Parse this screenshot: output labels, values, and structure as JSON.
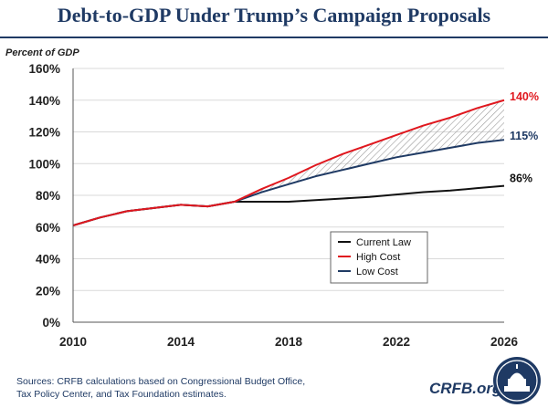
{
  "title": "Debt-to-GDP Under Trump’s Campaign Proposals",
  "footer": {
    "sources_line1": "Sources: CRFB calculations based on Congressional Budget Office,",
    "sources_line2": "Tax Policy Center, and Tax Foundation estimates.",
    "brand": "CRFB.org"
  },
  "colors": {
    "title": "#1f3a64",
    "current_law": "#111111",
    "high_cost": "#e0171e",
    "low_cost": "#1f3a64",
    "hatch": "#9a9a9a"
  },
  "chart_data": {
    "type": "line",
    "ylabel": "Percent of GDP",
    "xlim": [
      2010,
      2026
    ],
    "ylim": [
      0,
      160
    ],
    "x_ticks": [
      "2010",
      "2014",
      "2018",
      "2022",
      "2026"
    ],
    "x_tick_values": [
      2010,
      2014,
      2018,
      2022,
      2026
    ],
    "y_ticks": [
      "0%",
      "20%",
      "40%",
      "60%",
      "80%",
      "100%",
      "120%",
      "140%",
      "160%"
    ],
    "y_tick_values": [
      0,
      20,
      40,
      60,
      80,
      100,
      120,
      140,
      160
    ],
    "grid": "horizontal",
    "legend_position": "middle-right",
    "series": [
      {
        "name": "Current Law",
        "color": "#111111",
        "end_label": "86%",
        "x": [
          2010,
          2011,
          2012,
          2013,
          2014,
          2015,
          2016,
          2017,
          2018,
          2019,
          2020,
          2021,
          2022,
          2023,
          2024,
          2025,
          2026
        ],
        "y": [
          61,
          66,
          70,
          72,
          74,
          73,
          76,
          76,
          76,
          77,
          78,
          79,
          80.5,
          82,
          83,
          84.5,
          86
        ]
      },
      {
        "name": "High Cost",
        "color": "#e0171e",
        "end_label": "140%",
        "x": [
          2010,
          2011,
          2012,
          2013,
          2014,
          2015,
          2016,
          2017,
          2018,
          2019,
          2020,
          2021,
          2022,
          2023,
          2024,
          2025,
          2026
        ],
        "y": [
          61,
          66,
          70,
          72,
          74,
          73,
          76,
          84,
          91,
          99,
          106,
          112,
          118,
          124,
          129,
          135,
          140
        ]
      },
      {
        "name": "Low Cost",
        "color": "#1f3a64",
        "end_label": "115%",
        "x": [
          2010,
          2011,
          2012,
          2013,
          2014,
          2015,
          2016,
          2017,
          2018,
          2019,
          2020,
          2021,
          2022,
          2023,
          2024,
          2025,
          2026
        ],
        "y": [
          61,
          66,
          70,
          72,
          74,
          73,
          76,
          82,
          87,
          92,
          96,
          100,
          104,
          107,
          110,
          113,
          115
        ]
      }
    ]
  }
}
